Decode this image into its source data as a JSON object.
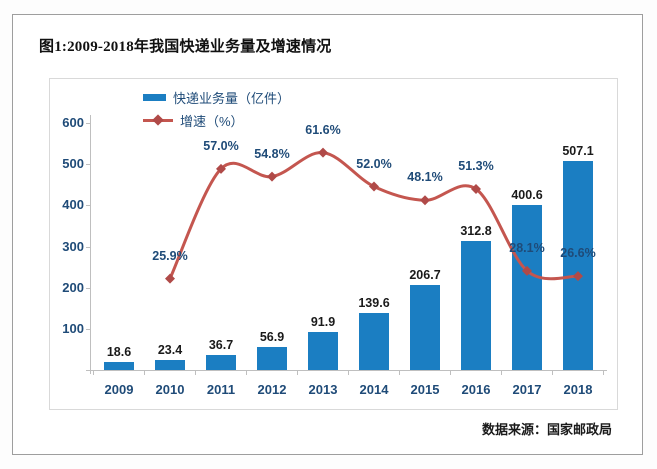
{
  "title": "图1:2009-2018年我国快递业务量及增速情况",
  "source_note": "数据来源：国家邮政局",
  "legend": {
    "items": [
      {
        "label": "快递业务量（亿件）",
        "marker": "bar-swatch-icon"
      },
      {
        "label": "增速（%）",
        "marker": "line-swatch-icon"
      }
    ]
  },
  "colors": {
    "bar": "#1B7EC2",
    "line": "#C4564F",
    "marker": "#B04A48",
    "axis_text": "#1F4B78",
    "value_text": "#1A1A1A",
    "axis_line": "#BFBFBF",
    "box_border": "#D9D9D9",
    "panel_border": "#9E9E9E"
  },
  "chart_data": {
    "type": "bar+line",
    "categories": [
      "2009",
      "2010",
      "2011",
      "2012",
      "2013",
      "2014",
      "2015",
      "2016",
      "2017",
      "2018"
    ],
    "series": [
      {
        "name": "快递业务量（亿件）",
        "type": "bar",
        "axis": "left",
        "color": "#1B7EC2",
        "values": [
          18.6,
          23.4,
          36.7,
          56.9,
          91.9,
          139.6,
          206.7,
          312.8,
          400.6,
          507.1
        ],
        "data_labels": [
          "18.6",
          "23.4",
          "36.7",
          "56.9",
          "91.9",
          "139.6",
          "206.7",
          "312.8",
          "400.6",
          "507.1"
        ]
      },
      {
        "name": "增速（%）",
        "type": "line",
        "axis": "right",
        "color": "#C4564F",
        "values": [
          null,
          25.9,
          57.0,
          54.8,
          61.6,
          52.0,
          48.1,
          51.3,
          28.1,
          26.6
        ],
        "data_labels": [
          null,
          "25.9%",
          "57.0%",
          "54.8%",
          "61.6%",
          "52.0%",
          "48.1%",
          "51.3%",
          "28.1%",
          "26.6%"
        ]
      }
    ],
    "y_axis_left": {
      "min": 0,
      "max": 600,
      "tick_step": 100,
      "tick_labels": [
        "100",
        "200",
        "300",
        "400",
        "500",
        "600"
      ]
    },
    "y_axis_right": {
      "min": 0,
      "max": 70,
      "visible": false
    },
    "grid": false,
    "legend_position": "top-inside"
  }
}
